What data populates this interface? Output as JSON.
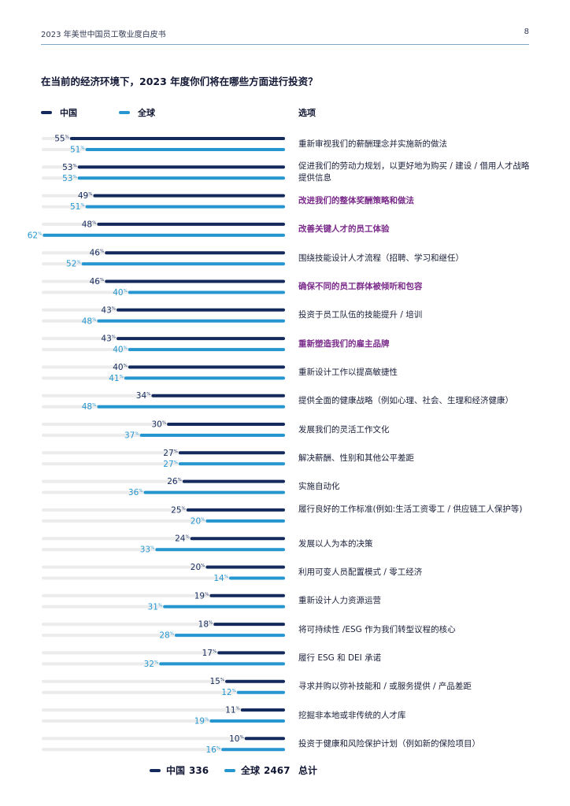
{
  "header": {
    "doc_title": "2023 年美世中国员工敬业度白皮书",
    "page_number": "8"
  },
  "colors": {
    "china": "#142a5c",
    "global": "#2596cf",
    "track": "#ececec",
    "highlight": "#7a2a8a",
    "rule": "#7fa7c9"
  },
  "chart_data": {
    "type": "bar",
    "orientation": "horizontal",
    "title": "在当前的经济环境下，2023 年度你们将在哪些方面进行投资？",
    "options_header": "选项",
    "unit": "%",
    "xlim": [
      0,
      100
    ],
    "legend": [
      "中国",
      "全球"
    ],
    "categories": [
      "重新审视我们的薪酬理念并实施新的做法",
      "促进我们的劳动力规划，以更好地为购买 / 建设 / 借用人才战略提供信息",
      "改进我们的整体奖酬策略和做法",
      "改善关键人才的员工体验",
      "围绕技能设计人才流程（招聘、学习和继任）",
      "确保不同的员工群体被倾听和包容",
      "投资于员工队伍的技能提升 / 培训",
      "重新塑造我们的雇主品牌",
      "重新设计工作以提高敏捷性",
      "提供全面的健康战略（例如心理、社会、生理和经济健康）",
      "发展我们的灵活工作文化",
      "解决薪酬、性别和其他公平差距",
      "实施自动化",
      "履行良好的工作标准(例如:生活工资零工 / 供应链工人保护等)",
      "发展以人为本的决策",
      "利用可变人员配置模式 / 零工经济",
      "重新设计人力资源运营",
      "将可持续性 /ESG 作为我们转型议程的核心",
      "履行 ESG 和 DEI 承诺",
      "寻求并购以弥补技能和 / 或服务提供 / 产品差距",
      "挖掘非本地或非传统的人才库",
      "投资于健康和风险保护计划（例如新的保险项目）"
    ],
    "highlighted_categories": [
      2,
      3,
      5,
      7
    ],
    "series": [
      {
        "name": "中国",
        "values": [
          55,
          53,
          49,
          48,
          46,
          46,
          43,
          43,
          40,
          34,
          30,
          27,
          26,
          25,
          24,
          20,
          19,
          18,
          17,
          15,
          11,
          10
        ]
      },
      {
        "name": "全球",
        "values": [
          51,
          53,
          51,
          62,
          52,
          40,
          48,
          40,
          41,
          48,
          37,
          27,
          36,
          20,
          33,
          14,
          31,
          28,
          32,
          12,
          19,
          16
        ]
      }
    ],
    "totals": [
      {
        "name": "中国",
        "value": "336"
      },
      {
        "name": "全球",
        "value": "2467"
      }
    ],
    "totals_label": "总计"
  }
}
